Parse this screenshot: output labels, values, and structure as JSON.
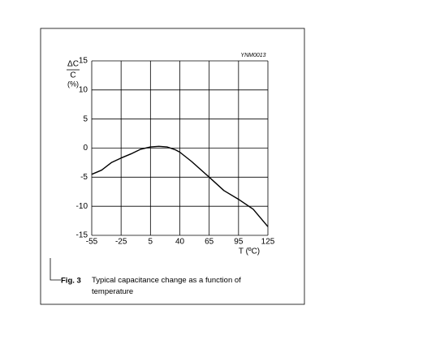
{
  "chart_data": {
    "type": "line",
    "code": "YNM0013",
    "ylabel": {
      "numerator": "ΔC",
      "denominator": "C",
      "unit": "(%)"
    },
    "xlabel": "T (ºC)",
    "xlim": [
      -55,
      125
    ],
    "xticks": [
      -55,
      -25,
      5,
      40,
      65,
      95,
      125
    ],
    "ylim": [
      -15,
      15
    ],
    "yticks": [
      15,
      10,
      5,
      0,
      -5,
      -10,
      -15
    ],
    "grid": true,
    "series": [
      {
        "color": "#000000",
        "x": [
          -55,
          -45,
          -35,
          -25,
          -15,
          -5,
          5,
          15,
          25,
          35,
          40,
          50,
          65,
          80,
          95,
          110,
          125
        ],
        "values": [
          -4.5,
          -3.8,
          -2.5,
          -1.7,
          -1,
          -0.2,
          0.2,
          0.3,
          0.2,
          -0.3,
          -0.7,
          -2.3,
          -5,
          -7.3,
          -8.8,
          -10.5,
          -13.5
        ]
      }
    ]
  },
  "figure": {
    "number": "Fig. 3",
    "caption": "Typical capacitance change as a function of temperature"
  }
}
